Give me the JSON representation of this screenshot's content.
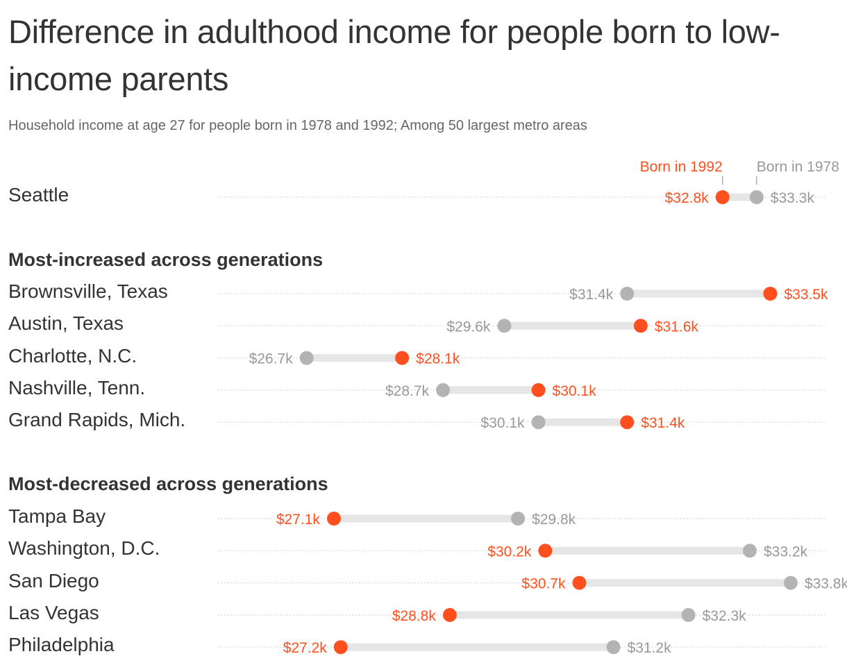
{
  "title": "Difference in adulthood income for people born to low-income parents",
  "subtitle": "Household income at age 27 for people born in 1978 and 1992; Among 50 largest metro areas",
  "colors": {
    "born_1992": "#ff4f1f",
    "born_1978": "#b3b3b3",
    "bar": "#e6e6e6",
    "dotted_line": "#cccccc"
  },
  "chart_data": {
    "type": "dumbbell",
    "unit": "$ thousands",
    "xlim": [
      25.4,
      34.3
    ],
    "legend": {
      "born_1992": "Born in 1992",
      "born_1978": "Born in 1978",
      "placement": "top-right, above Seattle"
    },
    "highlight": {
      "name": "Seattle",
      "born_1978": 33.3,
      "born_1992": 32.8,
      "label_1978": "$33.3k",
      "label_1992": "$32.8k"
    },
    "groups": [
      {
        "title": "Most-increased across generations",
        "rows": [
          {
            "name": "Brownsville, Texas",
            "born_1978": 31.4,
            "born_1992": 33.5,
            "label_1978": "$31.4k",
            "label_1992": "$33.5k"
          },
          {
            "name": "Austin, Texas",
            "born_1978": 29.6,
            "born_1992": 31.6,
            "label_1978": "$29.6k",
            "label_1992": "$31.6k"
          },
          {
            "name": "Charlotte, N.C.",
            "born_1978": 26.7,
            "born_1992": 28.1,
            "label_1978": "$26.7k",
            "label_1992": "$28.1k"
          },
          {
            "name": "Nashville, Tenn.",
            "born_1978": 28.7,
            "born_1992": 30.1,
            "label_1978": "$28.7k",
            "label_1992": "$30.1k"
          },
          {
            "name": "Grand Rapids, Mich.",
            "born_1978": 30.1,
            "born_1992": 31.4,
            "label_1978": "$30.1k",
            "label_1992": "$31.4k"
          }
        ]
      },
      {
        "title": "Most-decreased across generations",
        "rows": [
          {
            "name": "Tampa Bay",
            "born_1978": 29.8,
            "born_1992": 27.1,
            "label_1978": "$29.8k",
            "label_1992": "$27.1k"
          },
          {
            "name": "Washington, D.C.",
            "born_1978": 33.2,
            "born_1992": 30.2,
            "label_1978": "$33.2k",
            "label_1992": "$30.2k"
          },
          {
            "name": "San Diego",
            "born_1978": 33.8,
            "born_1992": 30.7,
            "label_1978": "$33.8k",
            "label_1992": "$30.7k"
          },
          {
            "name": "Las Vegas",
            "born_1978": 32.3,
            "born_1992": 28.8,
            "label_1978": "$32.3k",
            "label_1992": "$28.8k"
          },
          {
            "name": "Philadelphia",
            "born_1978": 31.2,
            "born_1992": 27.2,
            "label_1978": "$31.2k",
            "label_1992": "$27.2k"
          }
        ]
      }
    ]
  }
}
